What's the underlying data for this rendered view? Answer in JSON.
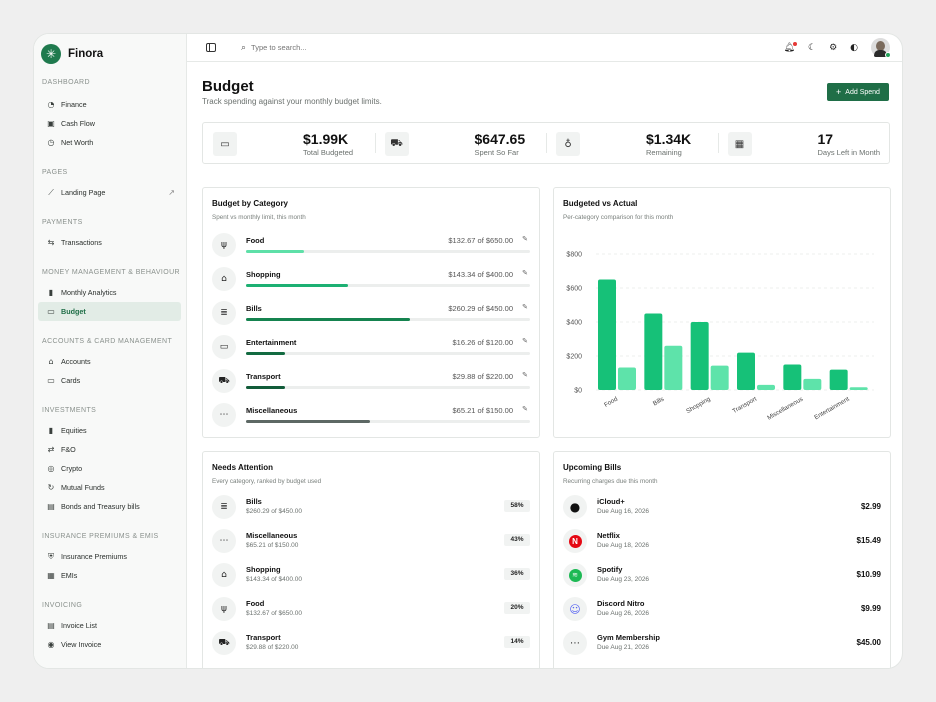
{
  "brand": {
    "name": "Finora"
  },
  "sidebar": {
    "sections": [
      {
        "title": "DASHBOARD",
        "items": [
          {
            "label": "Finance",
            "icon": "gauge-icon"
          },
          {
            "label": "Cash Flow",
            "icon": "cash-icon"
          },
          {
            "label": "Net Worth",
            "icon": "clock-icon"
          }
        ]
      },
      {
        "title": "PAGES",
        "items": [
          {
            "label": "Landing Page",
            "icon": "trend-icon"
          }
        ]
      },
      {
        "title": "PAYMENTS",
        "items": [
          {
            "label": "Transactions",
            "icon": "transactions-icon"
          }
        ]
      },
      {
        "title": "MONEY MANAGEMENT & BEHAVIOUR",
        "items": [
          {
            "label": "Monthly Analytics",
            "icon": "bar-chart-icon"
          },
          {
            "label": "Budget",
            "icon": "wallet-icon"
          }
        ]
      },
      {
        "title": "ACCOUNTS & CARD MANAGEMENT",
        "items": [
          {
            "label": "Accounts",
            "icon": "bank-icon"
          },
          {
            "label": "Cards",
            "icon": "card-icon"
          }
        ]
      },
      {
        "title": "INVESTMENTS",
        "items": [
          {
            "label": "Equities",
            "icon": "bar-chart-icon"
          },
          {
            "label": "F&O",
            "icon": "swap-icon"
          },
          {
            "label": "Crypto",
            "icon": "coins-icon"
          },
          {
            "label": "Mutual Funds",
            "icon": "refresh-icon"
          },
          {
            "label": "Bonds and Treasury bills",
            "icon": "bond-icon"
          }
        ]
      },
      {
        "title": "INSURANCE PREMIUMS & EMIS",
        "items": [
          {
            "label": "Insurance Premiums",
            "icon": "shield-icon"
          },
          {
            "label": "EMIs",
            "icon": "calendar-icon"
          }
        ]
      },
      {
        "title": "INVOICING",
        "items": [
          {
            "label": "Invoice List",
            "icon": "invoice-icon"
          },
          {
            "label": "View Invoice",
            "icon": "eye-icon"
          }
        ]
      }
    ]
  },
  "topbar": {
    "search_placeholder": "Type to search..."
  },
  "header": {
    "title": "Budget",
    "subtitle": "Track spending against your monthly budget limits.",
    "add_button": "Add Spend"
  },
  "stats": [
    {
      "value": "$1.99K",
      "label": "Total Budgeted",
      "icon": "wallet-icon"
    },
    {
      "value": "$647.65",
      "label": "Spent So Far",
      "icon": "cart-icon"
    },
    {
      "value": "$1.34K",
      "label": "Remaining",
      "icon": "piggy-icon"
    },
    {
      "value": "17",
      "label": "Days Left in Month",
      "icon": "calendar-icon"
    }
  ],
  "by_category": {
    "title": "Budget by Category",
    "subtitle": "Spent vs monthly limit, this month",
    "rows": [
      {
        "name": "Food",
        "amount": "$132.67 of $650.00",
        "progress": 0.204,
        "color": "#5ee0a8",
        "icon": "fork-knife-icon"
      },
      {
        "name": "Shopping",
        "amount": "$143.34 of $400.00",
        "progress": 0.358,
        "color": "#1db073",
        "icon": "bag-icon"
      },
      {
        "name": "Bills",
        "amount": "$260.29 of $450.00",
        "progress": 0.578,
        "color": "#15834f",
        "icon": "receipt-icon"
      },
      {
        "name": "Entertainment",
        "amount": "$16.26 of $120.00",
        "progress": 0.136,
        "color": "#136b41",
        "icon": "tv-icon"
      },
      {
        "name": "Transport",
        "amount": "$29.88 of $220.00",
        "progress": 0.136,
        "color": "#115c39",
        "icon": "car-icon"
      },
      {
        "name": "Miscellaneous",
        "amount": "$65.21 of $150.00",
        "progress": 0.435,
        "color": "#5d6864",
        "icon": "dots-icon"
      }
    ]
  },
  "vs_actual": {
    "title": "Budgeted vs Actual",
    "subtitle": "Per-category comparison for this month"
  },
  "chart_data": {
    "type": "bar",
    "categories": [
      "Food",
      "Bills",
      "Shopping",
      "Transport",
      "Miscellaneous",
      "Entertainment"
    ],
    "series": [
      {
        "values": [
          650,
          450,
          400,
          220,
          150,
          120
        ],
        "color": "#16c178"
      },
      {
        "values": [
          132.67,
          260.29,
          143.34,
          29.88,
          65.21,
          16.26
        ],
        "color": "#5ee3aa"
      }
    ],
    "ylim": [
      0,
      800
    ],
    "yticks": [
      "$0",
      "$200",
      "$400",
      "$600",
      "$800"
    ],
    "grid": true
  },
  "attention": {
    "title": "Needs Attention",
    "subtitle": "Every category, ranked by budget used",
    "rows": [
      {
        "name": "Bills",
        "amount": "$260.29 of $450.00",
        "pct": "58%",
        "icon": "receipt-icon"
      },
      {
        "name": "Miscellaneous",
        "amount": "$65.21 of $150.00",
        "pct": "43%",
        "icon": "dots-icon"
      },
      {
        "name": "Shopping",
        "amount": "$143.34 of $400.00",
        "pct": "36%",
        "icon": "bag-icon"
      },
      {
        "name": "Food",
        "amount": "$132.67 of $650.00",
        "pct": "20%",
        "icon": "fork-knife-icon"
      },
      {
        "name": "Transport",
        "amount": "$29.88 of $220.00",
        "pct": "14%",
        "icon": "car-icon"
      }
    ]
  },
  "bills": {
    "title": "Upcoming Bills",
    "subtitle": "Recurring charges due this month",
    "rows": [
      {
        "name": "iCloud+",
        "due": "Due Aug 16, 2026",
        "amount": "$2.99",
        "icon": "apple-icon"
      },
      {
        "name": "Netflix",
        "due": "Due Aug 18, 2026",
        "amount": "$15.49",
        "icon": "netflix-icon"
      },
      {
        "name": "Spotify",
        "due": "Due Aug 23, 2026",
        "amount": "$10.99",
        "icon": "spotify-icon"
      },
      {
        "name": "Discord Nitro",
        "due": "Due Aug 26, 2026",
        "amount": "$9.99",
        "icon": "discord-icon"
      },
      {
        "name": "Gym Membership",
        "due": "Due Aug 21, 2026",
        "amount": "$45.00",
        "icon": "dots-icon"
      }
    ]
  }
}
